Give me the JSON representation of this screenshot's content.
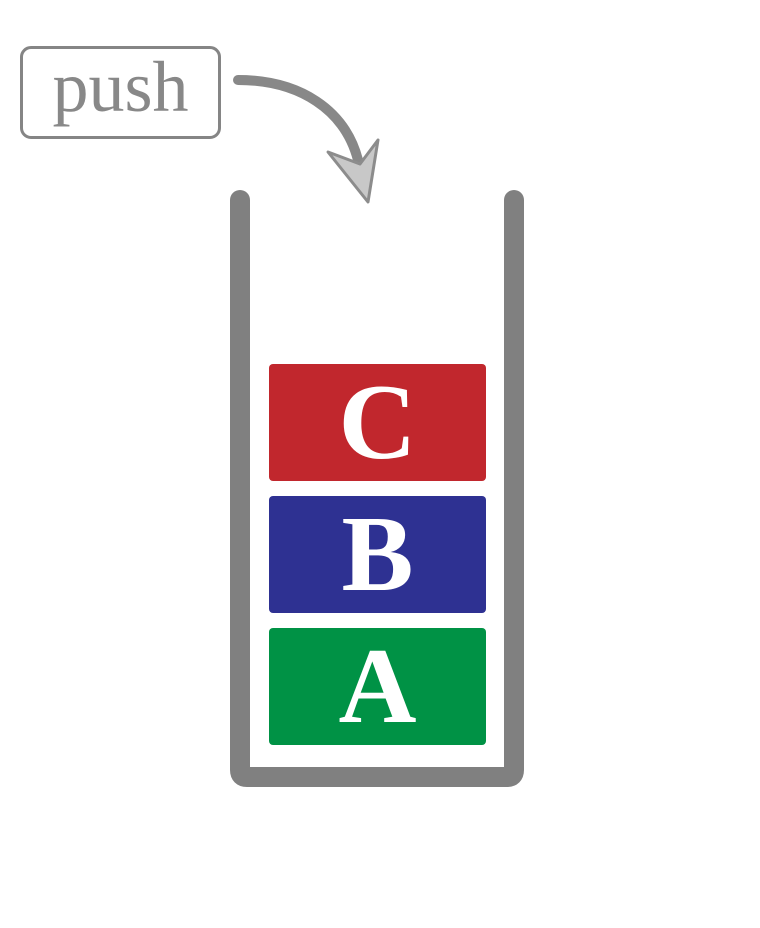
{
  "push_label": "push",
  "stack": {
    "blocks": [
      {
        "label": "C",
        "color": "#C1272D"
      },
      {
        "label": "B",
        "color": "#2E3192"
      },
      {
        "label": "A",
        "color": "#009245"
      }
    ],
    "container_color": "#808080"
  },
  "arrow": {
    "stroke_color": "#888888",
    "head_color": "#C8C8C8",
    "head_outline": "#8C8C8C"
  }
}
